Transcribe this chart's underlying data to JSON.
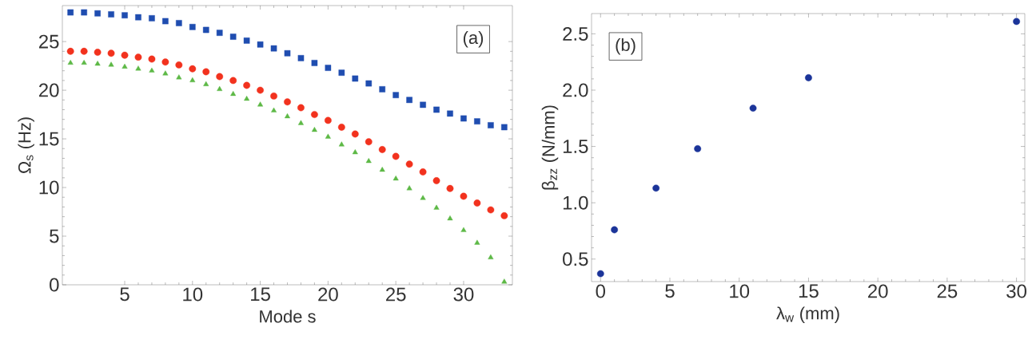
{
  "chart_data": [
    {
      "type": "scatter",
      "xlabel": "Mode s",
      "ylabel": "Ω$_{s}$ (Hz)",
      "annotations": [
        "(a)"
      ],
      "x": [
        1,
        2,
        3,
        4,
        5,
        6,
        7,
        8,
        9,
        10,
        11,
        12,
        13,
        14,
        15,
        16,
        17,
        18,
        19,
        20,
        21,
        22,
        23,
        24,
        25,
        26,
        27,
        28,
        29,
        30,
        31,
        32,
        33
      ],
      "xlim": [
        0.4,
        33.6
      ],
      "xticks": [
        5,
        10,
        15,
        20,
        25,
        30
      ],
      "ylim": [
        0,
        28.7
      ],
      "yticks": [
        0,
        5,
        10,
        15,
        20,
        25
      ],
      "series": [
        {
          "color": "#1f4db0",
          "marker": "square",
          "values": [
            28.0,
            28.0,
            27.9,
            27.8,
            27.7,
            27.5,
            27.4,
            27.1,
            26.9,
            26.5,
            26.2,
            25.9,
            25.5,
            25.1,
            24.7,
            24.3,
            23.8,
            23.3,
            22.8,
            22.3,
            21.8,
            21.2,
            20.7,
            20.1,
            19.5,
            19.0,
            18.5,
            18.0,
            17.6,
            17.1,
            16.8,
            16.4,
            16.2
          ]
        },
        {
          "color": "#f2321e",
          "marker": "circle",
          "values": [
            24.0,
            24.0,
            23.9,
            23.8,
            23.6,
            23.4,
            23.2,
            22.9,
            22.6,
            22.2,
            21.9,
            21.4,
            21.0,
            20.5,
            20.0,
            19.4,
            18.8,
            18.2,
            17.5,
            16.9,
            16.2,
            15.5,
            14.7,
            13.9,
            13.2,
            12.4,
            11.6,
            10.7,
            9.9,
            9.1,
            8.4,
            7.7,
            7.1
          ]
        },
        {
          "color": "#5db946",
          "marker": "triangle",
          "values": [
            22.8,
            22.8,
            22.7,
            22.6,
            22.4,
            22.2,
            22.0,
            21.7,
            21.3,
            21.0,
            20.6,
            20.1,
            19.6,
            19.1,
            18.5,
            17.9,
            17.3,
            16.6,
            15.9,
            15.2,
            14.4,
            13.6,
            12.7,
            11.8,
            10.9,
            9.9,
            8.9,
            7.9,
            6.8,
            5.6,
            4.3,
            2.8,
            0.3
          ]
        }
      ]
    },
    {
      "type": "scatter",
      "xlabel": "λ$_{w}$ (mm)",
      "ylabel": "β$_{zz}$ (N/mm)",
      "annotations": [
        "(b)"
      ],
      "xlim": [
        -0.65,
        30.6
      ],
      "xticks": [
        0,
        5,
        10,
        15,
        20,
        25,
        30
      ],
      "ylim": [
        0.3,
        2.68
      ],
      "yticks": [
        {
          "value": 0.5,
          "label": "0.5"
        },
        {
          "value": 1.0,
          "label": "1.0"
        },
        {
          "value": 1.5,
          "label": "1.5"
        },
        {
          "value": 2.0,
          "label": "2.0"
        },
        {
          "value": 2.5,
          "label": "2.5"
        }
      ],
      "series": [
        {
          "color": "#1b3499",
          "marker": "circle",
          "x": [
            0,
            1,
            4,
            7,
            11,
            15,
            30
          ],
          "values": [
            0.37,
            0.76,
            1.13,
            1.48,
            1.84,
            2.11,
            2.61
          ]
        }
      ]
    }
  ]
}
